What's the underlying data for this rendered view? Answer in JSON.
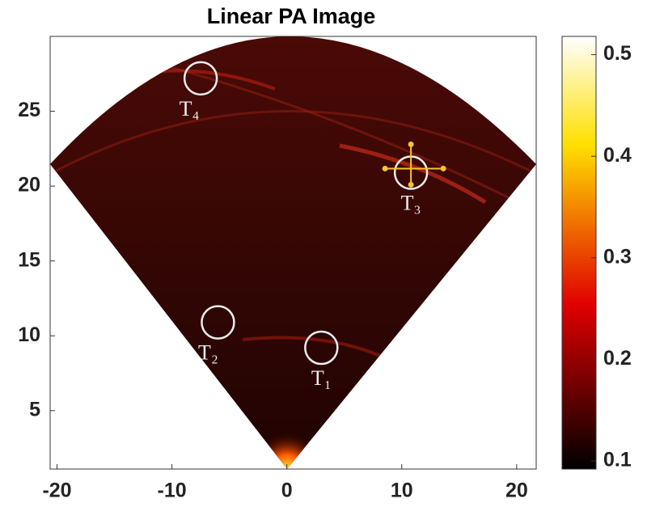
{
  "chart_data": {
    "type": "fan-image",
    "title": "Linear PA Image",
    "xlim": [
      -20.6,
      21.7
    ],
    "xticks": [
      -20,
      -10,
      0,
      10,
      20
    ],
    "ylim": [
      1.1,
      30
    ],
    "yticks": [
      5,
      10,
      15,
      20,
      25
    ],
    "colormap": "hot",
    "clim": [
      0.092,
      0.518
    ],
    "cticks": [
      0.1,
      0.2,
      0.3,
      0.4,
      0.5
    ],
    "targets": [
      {
        "label": "T₁",
        "x": 3,
        "y": 9.2
      },
      {
        "label": "T₂",
        "x": -6,
        "y": 10.9
      },
      {
        "label": "T₃",
        "x": 10.8,
        "y": 20.9
      },
      {
        "label": "T₄",
        "x": -7.5,
        "y": 27.2
      }
    ],
    "marker_color": "#f5c431"
  }
}
